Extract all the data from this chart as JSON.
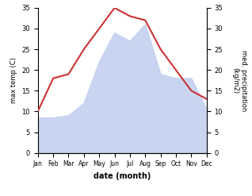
{
  "months": [
    "Jan",
    "Feb",
    "Mar",
    "Apr",
    "May",
    "Jun",
    "Jul",
    "Aug",
    "Sep",
    "Oct",
    "Nov",
    "Dec"
  ],
  "temperature": [
    10,
    18,
    19,
    25,
    30,
    35,
    33,
    32,
    25,
    20,
    15,
    13
  ],
  "precipitation": [
    8.5,
    8.5,
    9,
    12,
    22,
    29,
    27,
    31,
    19,
    18,
    18,
    10.5
  ],
  "temp_color": "#cc3333",
  "precip_fill_color": "#c8d4f0",
  "background_color": "#ffffff",
  "xlabel": "date (month)",
  "ylabel_left": "max temp (C)",
  "ylabel_right": "med. precipitation\n(kg/m2)",
  "ylim_left": [
    0,
    35
  ],
  "ylim_right": [
    0,
    35
  ],
  "yticks_left": [
    0,
    5,
    10,
    15,
    20,
    25,
    30,
    35
  ],
  "yticks_right": [
    0,
    5,
    10,
    15,
    20,
    25,
    30,
    35
  ],
  "figwidth": 3.18,
  "figheight": 2.47,
  "dpi": 100
}
